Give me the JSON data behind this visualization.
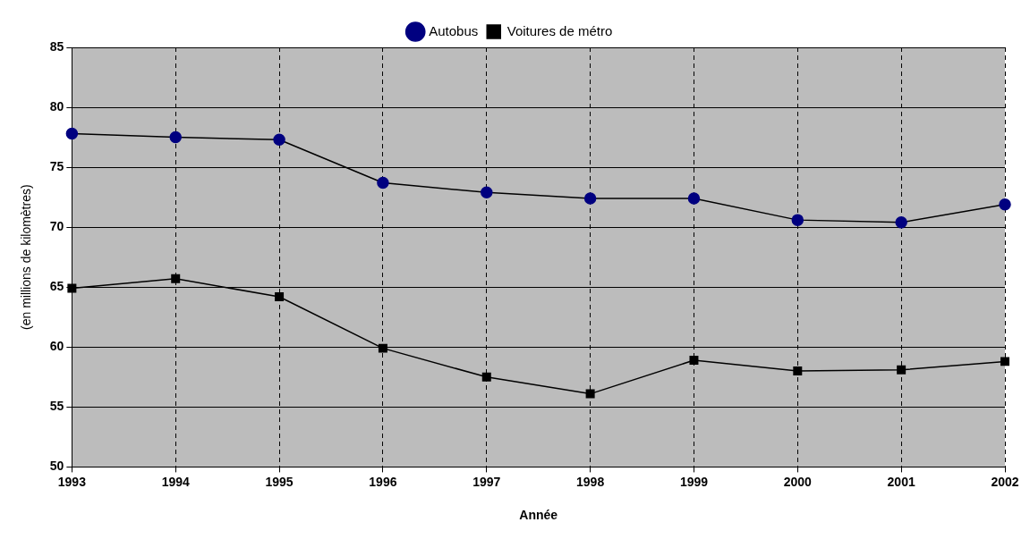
{
  "chart_data": {
    "type": "line",
    "xlabel": "Année",
    "ylabel": "(en millions de kilomètres)",
    "categories": [
      "1993",
      "1994",
      "1995",
      "1996",
      "1997",
      "1998",
      "1999",
      "2000",
      "2001",
      "2002"
    ],
    "series": [
      {
        "name": "Autobus",
        "color": "#000080",
        "marker": "circle",
        "values": [
          77.8,
          77.5,
          77.3,
          73.7,
          72.9,
          72.4,
          72.4,
          70.6,
          70.4,
          71.9
        ]
      },
      {
        "name": "Voitures de métro",
        "color": "#000000",
        "marker": "square",
        "values": [
          64.9,
          65.7,
          64.2,
          59.9,
          57.5,
          56.1,
          58.9,
          58.0,
          58.1,
          58.8
        ]
      }
    ],
    "ylim": [
      50,
      85
    ],
    "yticks": [
      50,
      55,
      60,
      65,
      70,
      75,
      80,
      85
    ],
    "grid": true,
    "legend": "top"
  }
}
